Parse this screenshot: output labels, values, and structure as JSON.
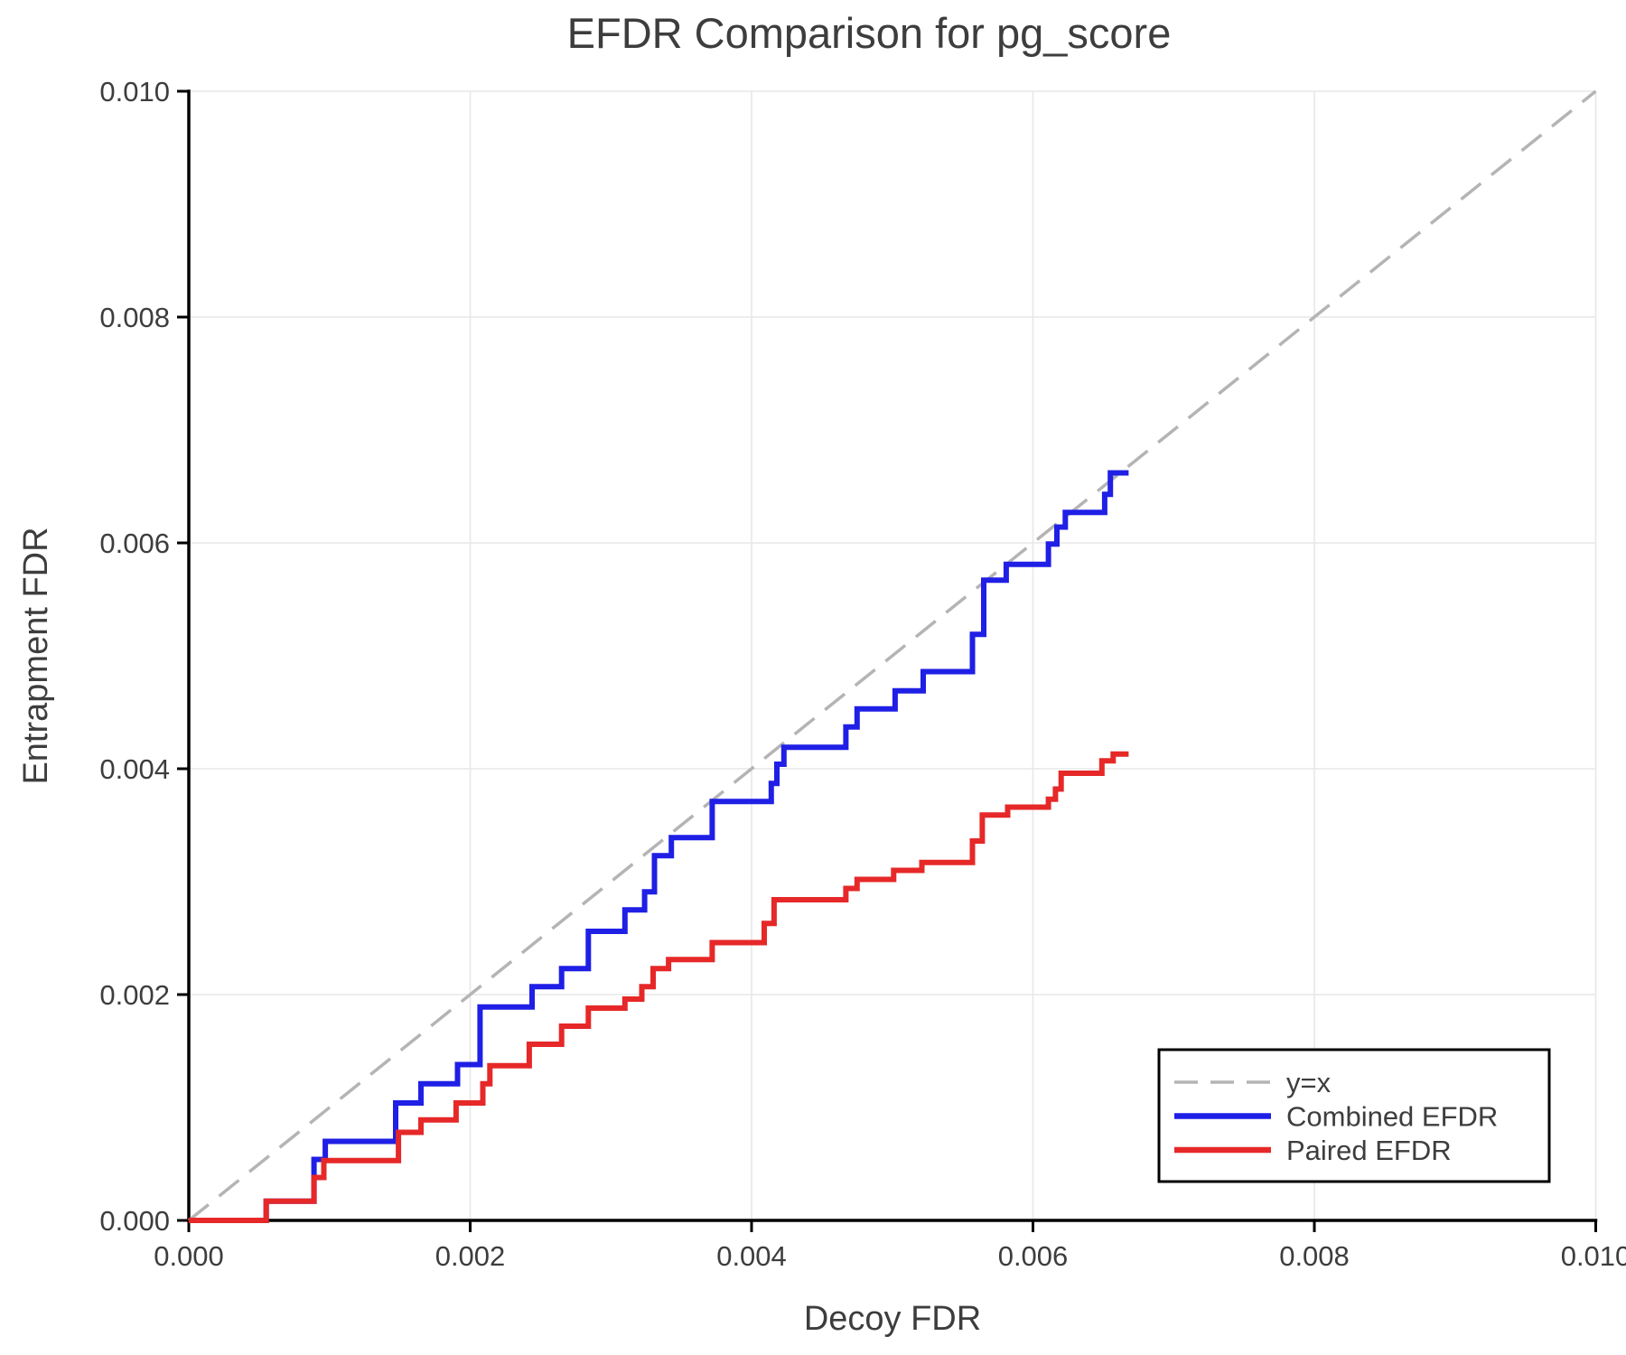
{
  "chart_data": {
    "type": "line",
    "title": "EFDR Comparison for pg_score",
    "xlabel": "Decoy FDR",
    "ylabel": "Entrapment FDR",
    "xlim": [
      0.0,
      0.01
    ],
    "ylim": [
      0.0,
      0.01
    ],
    "xticks": [
      0.0,
      0.002,
      0.004,
      0.006,
      0.008,
      0.01
    ],
    "yticks": [
      0.0,
      0.002,
      0.004,
      0.006,
      0.008,
      0.01
    ],
    "xtick_labels": [
      "0.000",
      "0.002",
      "0.004",
      "0.006",
      "0.008",
      "0.010"
    ],
    "ytick_labels": [
      "0.000",
      "0.002",
      "0.004",
      "0.006",
      "0.008",
      "0.010"
    ],
    "grid": true,
    "colors": {
      "grid": "#e7e7e7",
      "axis": "#000000",
      "text": "#3d3d3d",
      "background": "#ffffff",
      "diagonal": "#b4b4b4",
      "combined": "#1f1fe6",
      "paired": "#e62828"
    },
    "legend": {
      "position": "lower right",
      "entries": [
        {
          "label": "y=x",
          "color": "#b4b4b4",
          "style": "dashed"
        },
        {
          "label": "Combined EFDR",
          "color": "#1f1fe6",
          "style": "solid"
        },
        {
          "label": "Paired EFDR",
          "color": "#e62828",
          "style": "solid"
        }
      ]
    },
    "series": [
      {
        "name": "y=x",
        "mode": "line",
        "style": "dashed",
        "color": "#b4b4b4",
        "points": [
          [
            0.0,
            0.0
          ],
          [
            0.01,
            0.01
          ]
        ]
      },
      {
        "name": "Combined EFDR",
        "mode": "step",
        "style": "solid",
        "color": "#1f1fe6",
        "points": [
          [
            0.0,
            0.0
          ],
          [
            0.00055,
            0.0
          ],
          [
            0.00055,
            0.00017
          ],
          [
            0.00089,
            0.00017
          ],
          [
            0.00089,
            0.00054
          ],
          [
            0.00097,
            0.00054
          ],
          [
            0.00097,
            0.0007
          ],
          [
            0.00147,
            0.0007
          ],
          [
            0.00147,
            0.00104
          ],
          [
            0.00165,
            0.00104
          ],
          [
            0.00165,
            0.00121
          ],
          [
            0.00191,
            0.00121
          ],
          [
            0.00191,
            0.00138
          ],
          [
            0.00207,
            0.00138
          ],
          [
            0.00207,
            0.00189
          ],
          [
            0.00244,
            0.00189
          ],
          [
            0.00244,
            0.00207
          ],
          [
            0.00265,
            0.00207
          ],
          [
            0.00265,
            0.00223
          ],
          [
            0.00284,
            0.00223
          ],
          [
            0.00284,
            0.00256
          ],
          [
            0.0031,
            0.00256
          ],
          [
            0.0031,
            0.00275
          ],
          [
            0.00324,
            0.00275
          ],
          [
            0.00324,
            0.00291
          ],
          [
            0.00331,
            0.00291
          ],
          [
            0.00331,
            0.00323
          ],
          [
            0.00343,
            0.00323
          ],
          [
            0.00343,
            0.00339
          ],
          [
            0.00372,
            0.00339
          ],
          [
            0.00372,
            0.00371
          ],
          [
            0.00414,
            0.00371
          ],
          [
            0.00414,
            0.00387
          ],
          [
            0.00418,
            0.00387
          ],
          [
            0.00418,
            0.00404
          ],
          [
            0.00423,
            0.00404
          ],
          [
            0.00423,
            0.00419
          ],
          [
            0.00467,
            0.00419
          ],
          [
            0.00467,
            0.00437
          ],
          [
            0.00475,
            0.00437
          ],
          [
            0.00475,
            0.00453
          ],
          [
            0.00502,
            0.00453
          ],
          [
            0.00502,
            0.00469
          ],
          [
            0.00522,
            0.00469
          ],
          [
            0.00522,
            0.00486
          ],
          [
            0.00557,
            0.00486
          ],
          [
            0.00557,
            0.00519
          ],
          [
            0.00565,
            0.00519
          ],
          [
            0.00565,
            0.00567
          ],
          [
            0.00581,
            0.00567
          ],
          [
            0.00581,
            0.00581
          ],
          [
            0.00611,
            0.00581
          ],
          [
            0.00611,
            0.00599
          ],
          [
            0.00617,
            0.00599
          ],
          [
            0.00617,
            0.00614
          ],
          [
            0.00623,
            0.00614
          ],
          [
            0.00623,
            0.00627
          ],
          [
            0.00651,
            0.00627
          ],
          [
            0.00651,
            0.00643
          ],
          [
            0.00655,
            0.00643
          ],
          [
            0.00655,
            0.00662
          ],
          [
            0.00668,
            0.00662
          ]
        ]
      },
      {
        "name": "Paired EFDR",
        "mode": "step",
        "style": "solid",
        "color": "#e62828",
        "points": [
          [
            0.0,
            0.0
          ],
          [
            0.00055,
            0.0
          ],
          [
            0.00055,
            0.00017
          ],
          [
            0.00089,
            0.00017
          ],
          [
            0.00089,
            0.00038
          ],
          [
            0.00096,
            0.00038
          ],
          [
            0.00096,
            0.00053
          ],
          [
            0.00149,
            0.00053
          ],
          [
            0.00149,
            0.00078
          ],
          [
            0.00165,
            0.00078
          ],
          [
            0.00165,
            0.00089
          ],
          [
            0.0019,
            0.00089
          ],
          [
            0.0019,
            0.00104
          ],
          [
            0.00209,
            0.00104
          ],
          [
            0.00209,
            0.00121
          ],
          [
            0.00214,
            0.00121
          ],
          [
            0.00214,
            0.00137
          ],
          [
            0.00242,
            0.00137
          ],
          [
            0.00242,
            0.00156
          ],
          [
            0.00265,
            0.00156
          ],
          [
            0.00265,
            0.00172
          ],
          [
            0.00284,
            0.00172
          ],
          [
            0.00284,
            0.00188
          ],
          [
            0.0031,
            0.00188
          ],
          [
            0.0031,
            0.00196
          ],
          [
            0.00322,
            0.00196
          ],
          [
            0.00322,
            0.00207
          ],
          [
            0.0033,
            0.00207
          ],
          [
            0.0033,
            0.00223
          ],
          [
            0.00341,
            0.00223
          ],
          [
            0.00341,
            0.00231
          ],
          [
            0.00372,
            0.00231
          ],
          [
            0.00372,
            0.00246
          ],
          [
            0.00409,
            0.00246
          ],
          [
            0.00409,
            0.00263
          ],
          [
            0.00416,
            0.00263
          ],
          [
            0.00416,
            0.00284
          ],
          [
            0.00467,
            0.00284
          ],
          [
            0.00467,
            0.00294
          ],
          [
            0.00475,
            0.00294
          ],
          [
            0.00475,
            0.00302
          ],
          [
            0.00501,
            0.00302
          ],
          [
            0.00501,
            0.0031
          ],
          [
            0.00521,
            0.0031
          ],
          [
            0.00521,
            0.00317
          ],
          [
            0.00557,
            0.00317
          ],
          [
            0.00557,
            0.00336
          ],
          [
            0.00564,
            0.00336
          ],
          [
            0.00564,
            0.00359
          ],
          [
            0.00582,
            0.00359
          ],
          [
            0.00582,
            0.00366
          ],
          [
            0.00611,
            0.00366
          ],
          [
            0.00611,
            0.00373
          ],
          [
            0.00616,
            0.00373
          ],
          [
            0.00616,
            0.00382
          ],
          [
            0.0062,
            0.00382
          ],
          [
            0.0062,
            0.00396
          ],
          [
            0.00649,
            0.00396
          ],
          [
            0.00649,
            0.00407
          ],
          [
            0.00657,
            0.00407
          ],
          [
            0.00657,
            0.00413
          ],
          [
            0.00668,
            0.00413
          ]
        ]
      }
    ]
  }
}
